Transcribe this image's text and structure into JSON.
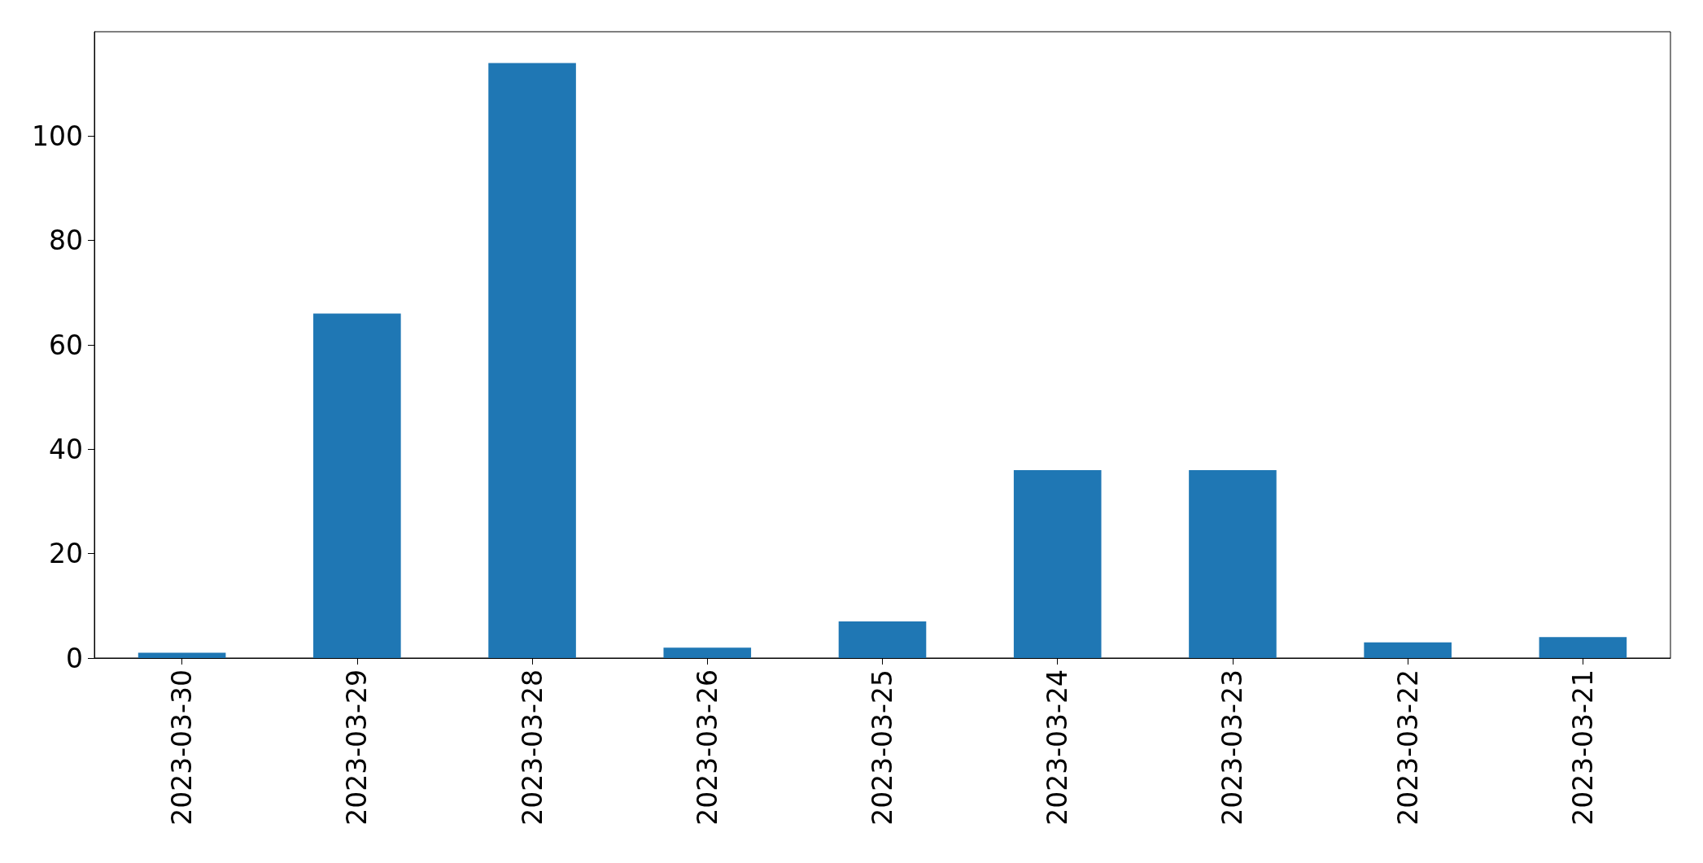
{
  "chart_data": {
    "type": "bar",
    "categories": [
      "2023-03-30",
      "2023-03-29",
      "2023-03-28",
      "2023-03-26",
      "2023-03-25",
      "2023-03-24",
      "2023-03-23",
      "2023-03-22",
      "2023-03-21"
    ],
    "values": [
      1,
      66,
      114,
      2,
      7,
      36,
      36,
      3,
      4
    ],
    "color": "#1f77b4",
    "ylim": [
      0,
      120
    ],
    "yticks": [
      0,
      20,
      40,
      60,
      80,
      100
    ],
    "grid": false
  }
}
